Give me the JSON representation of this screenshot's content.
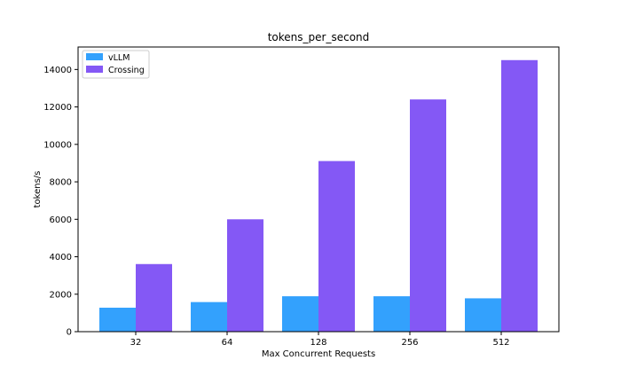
{
  "chart_data": {
    "type": "bar",
    "title": "tokens_per_second",
    "xlabel": "Max Concurrent Requests",
    "ylabel": "tokens/s",
    "categories": [
      "32",
      "64",
      "128",
      "256",
      "512"
    ],
    "series": [
      {
        "name": "vLLM",
        "color": "#33a1fd",
        "values": [
          1280,
          1580,
          1890,
          1890,
          1780
        ]
      },
      {
        "name": "Crossing",
        "color": "#8458f5",
        "values": [
          3610,
          6000,
          9110,
          12400,
          14500
        ]
      }
    ],
    "ylim": [
      0,
      15200
    ],
    "yticks": [
      0,
      2000,
      4000,
      6000,
      8000,
      10000,
      12000,
      14000
    ],
    "grid": false,
    "legend_position": "top-left"
  }
}
